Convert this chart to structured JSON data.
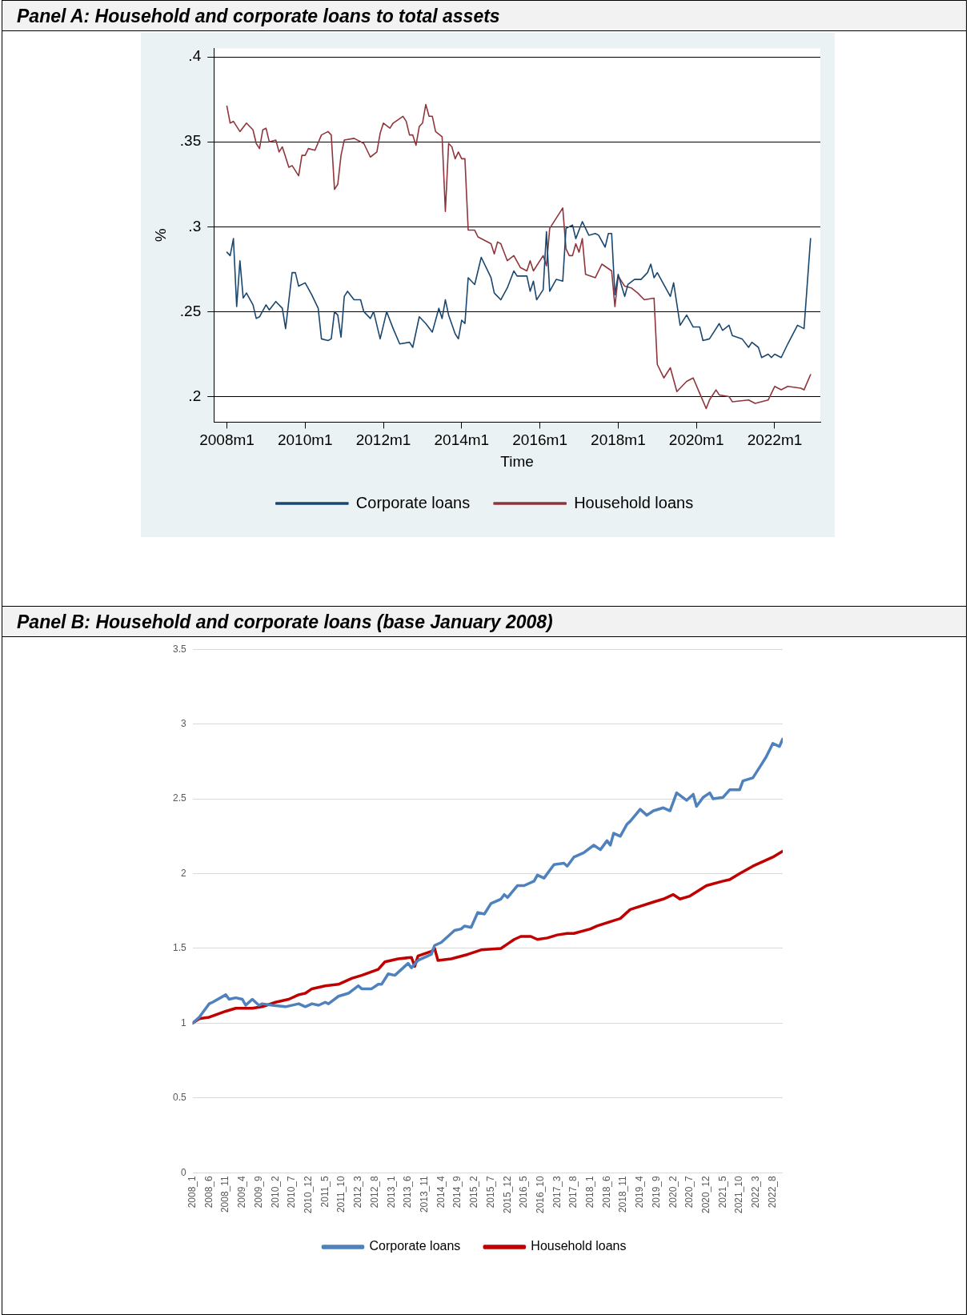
{
  "chart_data": [
    {
      "type": "line",
      "title": "Panel A: Household and corporate loans to total assets",
      "xlabel": "Time",
      "ylabel": "%",
      "xlim": [
        "2007-09",
        "2023-03"
      ],
      "xticks": [
        {
          "value": "2008-01",
          "label": "2008m1"
        },
        {
          "value": "2010-01",
          "label": "2010m1"
        },
        {
          "value": "2012-01",
          "label": "2012m1"
        },
        {
          "value": "2014-01",
          "label": "2014m1"
        },
        {
          "value": "2016-01",
          "label": "2016m1"
        },
        {
          "value": "2018-01",
          "label": "2018m1"
        },
        {
          "value": "2020-01",
          "label": "2020m1"
        },
        {
          "value": "2022-01",
          "label": "2022m1"
        }
      ],
      "ylim": [
        0.185,
        0.405
      ],
      "yticks": [
        {
          "value": 0.2,
          "label": ".2"
        },
        {
          "value": 0.25,
          "label": ".25"
        },
        {
          "value": 0.3,
          "label": ".3"
        },
        {
          "value": 0.35,
          "label": ".35"
        },
        {
          "value": 0.4,
          "label": ".4"
        }
      ],
      "grid": "y",
      "legend": "bottom",
      "series": [
        {
          "name": "Corporate loans",
          "color": "#1a476f",
          "x": [
            "2008-01",
            "2008-02",
            "2008-03",
            "2008-04",
            "2008-05",
            "2008-06",
            "2008-07",
            "2008-09",
            "2008-10",
            "2008-11",
            "2009-01",
            "2009-02",
            "2009-04",
            "2009-06",
            "2009-07",
            "2009-09",
            "2009-10",
            "2009-11",
            "2010-01",
            "2010-03",
            "2010-05",
            "2010-06",
            "2010-08",
            "2010-09",
            "2010-10",
            "2010-11",
            "2010-12",
            "2011-01",
            "2011-02",
            "2011-04",
            "2011-06",
            "2011-07",
            "2011-09",
            "2011-10",
            "2011-12",
            "2012-02",
            "2012-04",
            "2012-06",
            "2012-09",
            "2012-10",
            "2012-12",
            "2013-02",
            "2013-04",
            "2013-06",
            "2013-07",
            "2013-08",
            "2013-09",
            "2013-11",
            "2013-12",
            "2014-01",
            "2014-02",
            "2014-03",
            "2014-05",
            "2014-07",
            "2014-10",
            "2014-11",
            "2015-01",
            "2015-03",
            "2015-05",
            "2015-06",
            "2015-09",
            "2015-10",
            "2015-11",
            "2015-12",
            "2016-02",
            "2016-03",
            "2016-04",
            "2016-06",
            "2016-08",
            "2016-09",
            "2016-11",
            "2016-12",
            "2017-02",
            "2017-04",
            "2017-06",
            "2017-07",
            "2017-09",
            "2017-10",
            "2017-11",
            "2017-12",
            "2018-01",
            "2018-03",
            "2018-04",
            "2018-06",
            "2018-08",
            "2018-10",
            "2018-11",
            "2018-12",
            "2019-01",
            "2019-05",
            "2019-06",
            "2019-08",
            "2019-10",
            "2019-12",
            "2020-02",
            "2020-03",
            "2020-05",
            "2020-08",
            "2020-09",
            "2020-11",
            "2020-12",
            "2021-03",
            "2021-05",
            "2021-06",
            "2021-08",
            "2021-09",
            "2021-11",
            "2021-12",
            "2022-01",
            "2022-03",
            "2022-05",
            "2022-08",
            "2022-10",
            "2022-12"
          ],
          "values": [
            0.285,
            0.283,
            0.293,
            0.253,
            0.28,
            0.258,
            0.261,
            0.254,
            0.246,
            0.247,
            0.254,
            0.251,
            0.256,
            0.252,
            0.24,
            0.273,
            0.273,
            0.265,
            0.267,
            0.26,
            0.252,
            0.234,
            0.233,
            0.234,
            0.25,
            0.248,
            0.235,
            0.259,
            0.262,
            0.257,
            0.257,
            0.25,
            0.246,
            0.25,
            0.234,
            0.25,
            0.24,
            0.231,
            0.232,
            0.229,
            0.247,
            0.243,
            0.238,
            0.252,
            0.246,
            0.257,
            0.248,
            0.237,
            0.234,
            0.245,
            0.243,
            0.27,
            0.266,
            0.282,
            0.27,
            0.261,
            0.257,
            0.264,
            0.274,
            0.271,
            0.271,
            0.262,
            0.268,
            0.257,
            0.263,
            0.297,
            0.262,
            0.269,
            0.268,
            0.299,
            0.301,
            0.293,
            0.303,
            0.295,
            0.296,
            0.295,
            0.288,
            0.296,
            0.296,
            0.26,
            0.272,
            0.259,
            0.266,
            0.269,
            0.269,
            0.273,
            0.278,
            0.27,
            0.273,
            0.259,
            0.267,
            0.242,
            0.248,
            0.241,
            0.241,
            0.233,
            0.234,
            0.243,
            0.239,
            0.242,
            0.236,
            0.234,
            0.229,
            0.232,
            0.229,
            0.223,
            0.225,
            0.223,
            0.225,
            0.223,
            0.231,
            0.242,
            0.24,
            0.293
          ]
        },
        {
          "name": "Household loans",
          "color": "#90353b",
          "x": [
            "2008-01",
            "2008-02",
            "2008-03",
            "2008-05",
            "2008-07",
            "2008-09",
            "2008-10",
            "2008-11",
            "2008-12",
            "2009-01",
            "2009-02",
            "2009-04",
            "2009-05",
            "2009-06",
            "2009-08",
            "2009-09",
            "2009-11",
            "2009-12",
            "2010-01",
            "2010-02",
            "2010-04",
            "2010-06",
            "2010-08",
            "2010-09",
            "2010-10",
            "2010-11",
            "2010-12",
            "2011-01",
            "2011-04",
            "2011-07",
            "2011-09",
            "2011-11",
            "2011-12",
            "2012-01",
            "2012-03",
            "2012-04",
            "2012-07",
            "2012-08",
            "2012-09",
            "2012-10",
            "2012-11",
            "2012-12",
            "2013-01",
            "2013-02",
            "2013-03",
            "2013-04",
            "2013-05",
            "2013-07",
            "2013-08",
            "2013-09",
            "2013-10",
            "2013-11",
            "2013-12",
            "2014-01",
            "2014-02",
            "2014-03",
            "2014-05",
            "2014-06",
            "2014-10",
            "2014-11",
            "2014-12",
            "2015-01",
            "2015-03",
            "2015-05",
            "2015-07",
            "2015-09",
            "2015-10",
            "2015-11",
            "2016-02",
            "2016-03",
            "2016-04",
            "2016-08",
            "2016-09",
            "2016-10",
            "2016-11",
            "2016-12",
            "2017-01",
            "2017-02",
            "2017-03",
            "2017-06",
            "2017-08",
            "2017-11",
            "2017-12",
            "2018-01",
            "2018-03",
            "2018-05",
            "2018-07",
            "2018-09",
            "2018-12",
            "2019-01",
            "2019-03",
            "2019-05",
            "2019-07",
            "2019-10",
            "2019-12",
            "2020-02",
            "2020-04",
            "2020-05",
            "2020-07",
            "2020-08",
            "2020-11",
            "2020-12",
            "2021-05",
            "2021-07",
            "2021-11",
            "2022-01",
            "2022-03",
            "2022-05",
            "2022-09",
            "2022-10",
            "2022-12"
          ],
          "values": [
            0.371,
            0.361,
            0.362,
            0.356,
            0.361,
            0.357,
            0.349,
            0.346,
            0.357,
            0.358,
            0.35,
            0.351,
            0.344,
            0.347,
            0.335,
            0.336,
            0.33,
            0.342,
            0.342,
            0.346,
            0.345,
            0.354,
            0.356,
            0.354,
            0.322,
            0.325,
            0.342,
            0.351,
            0.352,
            0.349,
            0.341,
            0.344,
            0.355,
            0.361,
            0.358,
            0.361,
            0.365,
            0.362,
            0.354,
            0.354,
            0.348,
            0.359,
            0.361,
            0.372,
            0.365,
            0.365,
            0.356,
            0.353,
            0.309,
            0.349,
            0.347,
            0.34,
            0.344,
            0.34,
            0.34,
            0.298,
            0.298,
            0.294,
            0.29,
            0.284,
            0.291,
            0.29,
            0.28,
            0.283,
            0.276,
            0.274,
            0.28,
            0.274,
            0.283,
            0.277,
            0.299,
            0.311,
            0.287,
            0.283,
            0.283,
            0.29,
            0.285,
            0.293,
            0.272,
            0.27,
            0.278,
            0.274,
            0.253,
            0.271,
            0.265,
            0.264,
            0.261,
            0.257,
            0.258,
            0.219,
            0.211,
            0.217,
            0.203,
            0.209,
            0.211,
            0.202,
            0.193,
            0.198,
            0.204,
            0.201,
            0.2,
            0.197,
            0.198,
            0.196,
            0.198,
            0.206,
            0.204,
            0.206,
            0.205,
            0.204,
            0.213
          ]
        }
      ]
    },
    {
      "type": "line",
      "title": "Panel B: Household and corporate loans (base January 2008)",
      "xlim": [
        "2008-01",
        "2022-11"
      ],
      "xticks": [
        {
          "value": "2008-01",
          "label": "2008_1"
        },
        {
          "value": "2008-06",
          "label": "2008_6"
        },
        {
          "value": "2008-11",
          "label": "2008_11"
        },
        {
          "value": "2009-04",
          "label": "2009_4"
        },
        {
          "value": "2009-09",
          "label": "2009_9"
        },
        {
          "value": "2010-02",
          "label": "2010_2"
        },
        {
          "value": "2010-07",
          "label": "2010_7"
        },
        {
          "value": "2010-12",
          "label": "2010_12"
        },
        {
          "value": "2011-05",
          "label": "2011_5"
        },
        {
          "value": "2011-10",
          "label": "2011_10"
        },
        {
          "value": "2012-03",
          "label": "2012_3"
        },
        {
          "value": "2012-08",
          "label": "2012_8"
        },
        {
          "value": "2013-01",
          "label": "2013_1"
        },
        {
          "value": "2013-06",
          "label": "2013_6"
        },
        {
          "value": "2013-11",
          "label": "2013_11"
        },
        {
          "value": "2014-04",
          "label": "2014_4"
        },
        {
          "value": "2014-09",
          "label": "2014_9"
        },
        {
          "value": "2015-02",
          "label": "2015_2"
        },
        {
          "value": "2015-07",
          "label": "2015_7"
        },
        {
          "value": "2015-12",
          "label": "2015_12"
        },
        {
          "value": "2016-05",
          "label": "2016_5"
        },
        {
          "value": "2016-10",
          "label": "2016_10"
        },
        {
          "value": "2017-03",
          "label": "2017_3"
        },
        {
          "value": "2017-08",
          "label": "2017_8"
        },
        {
          "value": "2018-01",
          "label": "2018_1"
        },
        {
          "value": "2018-06",
          "label": "2018_6"
        },
        {
          "value": "2018-11",
          "label": "2018_11"
        },
        {
          "value": "2019-04",
          "label": "2019_4"
        },
        {
          "value": "2019-09",
          "label": "2019_9"
        },
        {
          "value": "2020-02",
          "label": "2020_2"
        },
        {
          "value": "2020-07",
          "label": "2020_7"
        },
        {
          "value": "2020-12",
          "label": "2020_12"
        },
        {
          "value": "2021-05",
          "label": "2021_5"
        },
        {
          "value": "2021-10",
          "label": "2021_10"
        },
        {
          "value": "2022-03",
          "label": "2022_3"
        },
        {
          "value": "2022-08",
          "label": "2022_8"
        }
      ],
      "ylim": [
        0,
        3.5
      ],
      "yticks": [
        0,
        0.5,
        1,
        1.5,
        2,
        2.5,
        3,
        3.5
      ],
      "grid": "y",
      "legend": "bottom",
      "series": [
        {
          "name": "Corporate loans",
          "color": "#4f81bd",
          "x": [
            "2008-01",
            "2008-03",
            "2008-06",
            "2008-07",
            "2008-11",
            "2008-12",
            "2009-02",
            "2009-04",
            "2009-05",
            "2009-07",
            "2009-09",
            "2009-10",
            "2010-01",
            "2010-05",
            "2010-09",
            "2010-11",
            "2011-01",
            "2011-03",
            "2011-05",
            "2011-06",
            "2011-09",
            "2011-12",
            "2012-03",
            "2012-04",
            "2012-07",
            "2012-09",
            "2012-10",
            "2012-12",
            "2013-02",
            "2013-04",
            "2013-06",
            "2013-07",
            "2013-09",
            "2014-01",
            "2014-02",
            "2014-04",
            "2014-08",
            "2014-10",
            "2014-11",
            "2015-01",
            "2015-03",
            "2015-05",
            "2015-07",
            "2015-10",
            "2015-11",
            "2015-12",
            "2016-03",
            "2016-05",
            "2016-08",
            "2016-09",
            "2016-11",
            "2017-02",
            "2017-05",
            "2017-06",
            "2017-08",
            "2017-11",
            "2018-02",
            "2018-04",
            "2018-06",
            "2018-07",
            "2018-08",
            "2018-10",
            "2018-12",
            "2019-01",
            "2019-04",
            "2019-06",
            "2019-08",
            "2019-11",
            "2020-01",
            "2020-03",
            "2020-06",
            "2020-08",
            "2020-09",
            "2020-11",
            "2021-01",
            "2021-02",
            "2021-05",
            "2021-07",
            "2021-10",
            "2021-11",
            "2022-02",
            "2022-04",
            "2022-06",
            "2022-08",
            "2022-10",
            "2022-11"
          ],
          "values": [
            1.0,
            1.04,
            1.13,
            1.14,
            1.19,
            1.16,
            1.17,
            1.16,
            1.12,
            1.16,
            1.12,
            1.13,
            1.12,
            1.11,
            1.13,
            1.11,
            1.13,
            1.12,
            1.14,
            1.13,
            1.18,
            1.2,
            1.25,
            1.23,
            1.23,
            1.26,
            1.26,
            1.33,
            1.32,
            1.36,
            1.4,
            1.37,
            1.42,
            1.46,
            1.52,
            1.54,
            1.62,
            1.63,
            1.65,
            1.64,
            1.74,
            1.73,
            1.8,
            1.83,
            1.86,
            1.84,
            1.92,
            1.92,
            1.95,
            1.99,
            1.97,
            2.06,
            2.07,
            2.05,
            2.11,
            2.14,
            2.19,
            2.16,
            2.22,
            2.19,
            2.27,
            2.25,
            2.33,
            2.35,
            2.43,
            2.39,
            2.42,
            2.44,
            2.42,
            2.54,
            2.49,
            2.53,
            2.45,
            2.51,
            2.54,
            2.5,
            2.51,
            2.56,
            2.56,
            2.62,
            2.64,
            2.71,
            2.78,
            2.87,
            2.85,
            2.9
          ]
        },
        {
          "name": "Household loans",
          "color": "#c00000",
          "x": [
            "2008-01",
            "2008-03",
            "2008-06",
            "2008-11",
            "2009-02",
            "2009-07",
            "2009-10",
            "2010-02",
            "2010-06",
            "2010-09",
            "2010-11",
            "2011-01",
            "2011-05",
            "2011-09",
            "2012-01",
            "2012-04",
            "2012-09",
            "2012-11",
            "2013-03",
            "2013-07",
            "2013-08",
            "2013-09",
            "2014-01",
            "2014-02",
            "2014-03",
            "2014-07",
            "2014-12",
            "2015-04",
            "2015-10",
            "2015-12",
            "2016-02",
            "2016-04",
            "2016-07",
            "2016-09",
            "2016-12",
            "2017-03",
            "2017-06",
            "2017-08",
            "2018-01",
            "2018-03",
            "2018-10",
            "2019-01",
            "2019-08",
            "2019-11",
            "2020-02",
            "2020-04",
            "2020-07",
            "2020-12",
            "2021-05",
            "2021-07",
            "2021-10",
            "2022-02",
            "2022-08",
            "2022-11"
          ],
          "values": [
            1.0,
            1.03,
            1.04,
            1.08,
            1.1,
            1.1,
            1.11,
            1.14,
            1.16,
            1.19,
            1.2,
            1.23,
            1.25,
            1.26,
            1.3,
            1.32,
            1.36,
            1.41,
            1.43,
            1.44,
            1.38,
            1.45,
            1.48,
            1.5,
            1.42,
            1.43,
            1.46,
            1.49,
            1.5,
            1.53,
            1.56,
            1.58,
            1.58,
            1.56,
            1.57,
            1.59,
            1.6,
            1.6,
            1.63,
            1.65,
            1.7,
            1.76,
            1.81,
            1.83,
            1.86,
            1.83,
            1.85,
            1.92,
            1.95,
            1.96,
            2.0,
            2.05,
            2.11,
            2.15
          ]
        }
      ]
    }
  ]
}
